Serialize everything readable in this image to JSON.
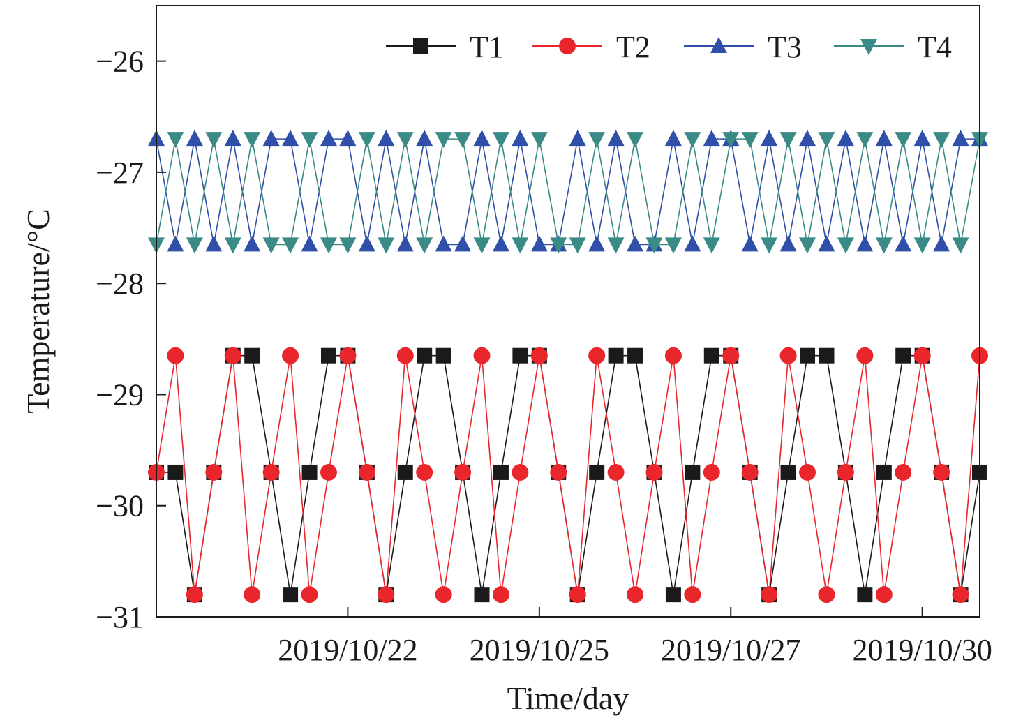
{
  "chart_data": {
    "type": "line",
    "xlabel": "Time/day",
    "ylabel": "Temperature/°C",
    "xlim": [
      0,
      43
    ],
    "ylim": [
      -31,
      -25.5
    ],
    "y_ticks": [
      -31,
      -30,
      -29,
      -28,
      -27,
      -26
    ],
    "y_tick_labels": [
      "−31",
      "−30",
      "−29",
      "−28",
      "−27",
      "−26"
    ],
    "x_ticks": [
      10,
      20,
      30,
      40
    ],
    "x_tick_labels": [
      "2019/10/22",
      "2019/10/25",
      "2019/10/27",
      "2019/10/30"
    ],
    "legend_position": "top",
    "grid": false,
    "x": [
      0,
      1,
      2,
      3,
      4,
      5,
      6,
      7,
      8,
      9,
      10,
      11,
      12,
      13,
      14,
      15,
      16,
      17,
      18,
      19,
      20,
      21,
      22,
      23,
      24,
      25,
      26,
      27,
      28,
      29,
      30,
      31,
      32,
      33,
      34,
      35,
      36,
      37,
      38,
      39,
      40,
      41,
      42,
      43
    ],
    "series": [
      {
        "name": "T1",
        "color": "#1a1a1a",
        "marker": "square",
        "values": [
          -29.7,
          -29.7,
          -30.8,
          -29.7,
          -28.65,
          -28.65,
          -29.7,
          -30.8,
          -29.7,
          -28.65,
          -28.65,
          -29.7,
          -30.8,
          -29.7,
          -28.65,
          -28.65,
          -29.7,
          -30.8,
          -29.7,
          -28.65,
          -28.65,
          -29.7,
          -30.8,
          -29.7,
          -28.65,
          -28.65,
          -29.7,
          -30.8,
          -29.7,
          -28.65,
          -28.65,
          -29.7,
          -30.8,
          -29.7,
          -28.65,
          -28.65,
          -29.7,
          -30.8,
          -29.7,
          -28.65,
          -28.65,
          -29.7,
          -30.8,
          -29.7
        ]
      },
      {
        "name": "T2",
        "color": "#e8262c",
        "marker": "circle",
        "values": [
          -29.7,
          -28.65,
          -30.8,
          -29.7,
          -28.65,
          -30.8,
          -29.7,
          -28.65,
          -30.8,
          -29.7,
          -28.65,
          -29.7,
          -30.8,
          -28.65,
          -29.7,
          -30.8,
          -29.7,
          -28.65,
          -30.8,
          -29.7,
          -28.65,
          -29.7,
          -30.8,
          -28.65,
          -29.7,
          -30.8,
          -29.7,
          -28.65,
          -30.8,
          -29.7,
          -28.65,
          -29.7,
          -30.8,
          -28.65,
          -29.7,
          -30.8,
          -29.7,
          -28.65,
          -30.8,
          -29.7,
          -28.65,
          -29.7,
          -30.8,
          -28.65
        ]
      },
      {
        "name": "T3",
        "color": "#2f4fa8",
        "marker": "triangle-up",
        "values": [
          -26.7,
          -27.65,
          -26.7,
          -27.65,
          -26.7,
          -27.65,
          -26.7,
          -26.7,
          -27.65,
          -26.7,
          -26.7,
          -27.65,
          -26.7,
          -27.65,
          -26.7,
          -27.65,
          -27.65,
          -26.7,
          -27.65,
          -26.7,
          -27.65,
          -27.65,
          -26.7,
          -27.65,
          -26.7,
          -27.65,
          -27.65,
          -26.7,
          -27.65,
          -26.7,
          -26.7,
          -27.65,
          -26.7,
          -27.65,
          -26.7,
          -27.65,
          -26.7,
          -27.65,
          -26.7,
          -27.65,
          -26.7,
          -27.65,
          -26.7,
          -26.7
        ]
      },
      {
        "name": "T4",
        "color": "#3a8a86",
        "marker": "triangle-down",
        "values": [
          -27.65,
          -26.7,
          -27.65,
          -26.7,
          -27.65,
          -26.7,
          -27.65,
          -27.65,
          -26.7,
          -27.65,
          -27.65,
          -26.7,
          -27.65,
          -26.7,
          -27.65,
          -26.7,
          -26.7,
          -27.65,
          -26.7,
          -27.65,
          -26.7,
          -27.65,
          -27.65,
          -26.7,
          -27.65,
          -26.7,
          -27.65,
          -27.65,
          -26.7,
          -27.65,
          -26.7,
          -26.7,
          -27.65,
          -26.7,
          -27.65,
          -26.7,
          -27.65,
          -26.7,
          -27.65,
          -26.7,
          -27.65,
          -26.7,
          -27.65,
          -26.7
        ]
      }
    ]
  }
}
